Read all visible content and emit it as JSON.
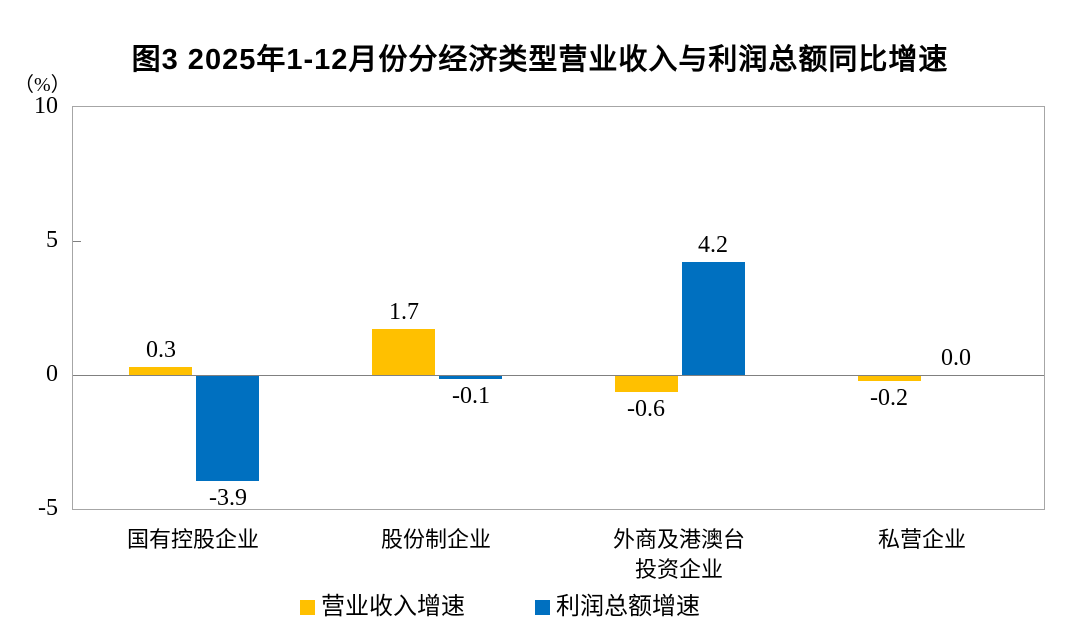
{
  "title": "图3  2025年1-12月份分经济类型营业收入与利润总额同比增速",
  "chart_data": {
    "type": "bar",
    "title": "图3  2025年1-12月份分经济类型营业收入与利润总额同比增速",
    "unit_label": "（%）",
    "categories": [
      "国有控股企业",
      "股份制企业",
      "外商及港澳台\n投资企业",
      "私营企业"
    ],
    "series": [
      {
        "name": "营业收入增速",
        "color": "#FFC000",
        "values": [
          0.3,
          1.7,
          -0.6,
          -0.2
        ]
      },
      {
        "name": "利润总额增速",
        "color": "#0070C0",
        "values": [
          -3.9,
          -0.1,
          4.2,
          0.0
        ]
      }
    ],
    "yticks": [
      10,
      5,
      0,
      -5
    ],
    "ylim": [
      -5,
      10
    ],
    "grid": false,
    "legend_position": "bottom",
    "axis_color": "#a6a6a6",
    "zero_line_color": "#808080",
    "text_color": "#000000"
  }
}
